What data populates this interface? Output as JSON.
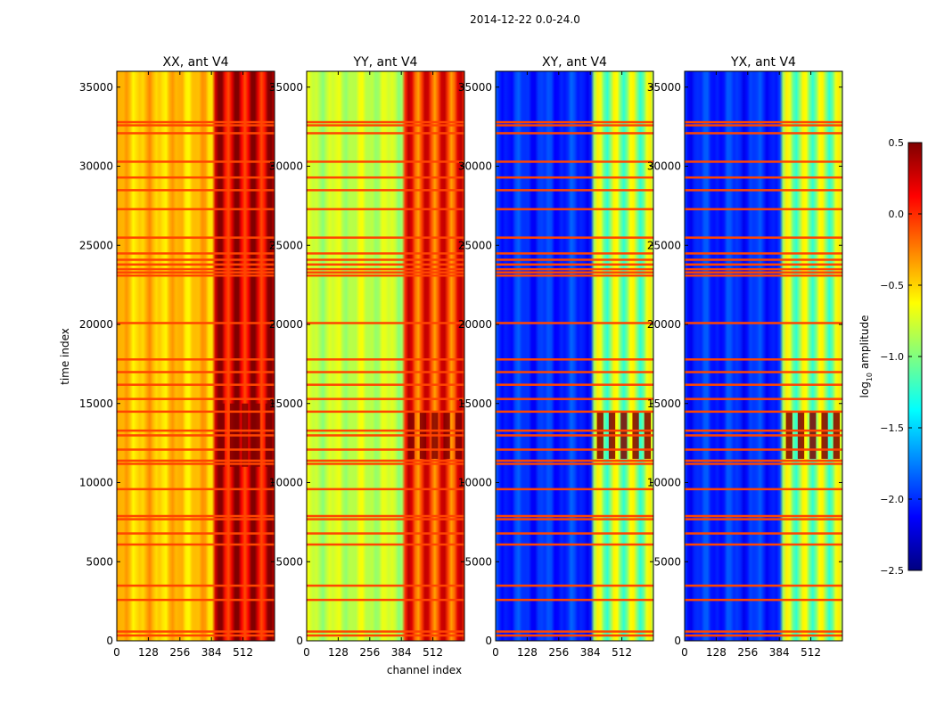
{
  "figure": {
    "suptitle": "2014-12-22 0.0-24.0",
    "xlabel": "channel index",
    "ylabel": "time index"
  },
  "colors": {
    "jet": [
      "#000080",
      "#0000ff",
      "#0080ff",
      "#00ffff",
      "#80ff80",
      "#ffff00",
      "#ff8000",
      "#ff0000",
      "#800000"
    ]
  },
  "chart_data": [
    {
      "type": "heatmap",
      "title": "XX, ant V4",
      "polarization": "XX",
      "xlim": [
        0,
        640
      ],
      "ylim": [
        0,
        36000
      ],
      "xticks": [
        0,
        128,
        256,
        384,
        512
      ],
      "xtick_labels": [
        "0",
        "128",
        "256",
        "384",
        "512"
      ],
      "yticks": [
        0,
        5000,
        10000,
        15000,
        20000,
        25000,
        30000,
        35000
      ],
      "ytick_labels": [
        "0",
        "5000",
        "10000",
        "15000",
        "20000",
        "25000",
        "30000",
        "35000"
      ],
      "base_level": -0.45,
      "bright_region_start": 400,
      "bright_level": 0.25,
      "peak_level": 0.5,
      "peak_time_range": [
        11000,
        15000
      ]
    },
    {
      "type": "heatmap",
      "title": "YY, ant V4",
      "polarization": "YY",
      "xlim": [
        0,
        640
      ],
      "ylim": [
        0,
        36000
      ],
      "xticks": [
        0,
        128,
        256,
        384,
        512
      ],
      "xtick_labels": [
        "0",
        "128",
        "256",
        "384",
        "512"
      ],
      "yticks": [
        0,
        5000,
        10000,
        15000,
        20000,
        25000,
        30000,
        35000
      ],
      "ytick_labels": [
        "0",
        "5000",
        "10000",
        "15000",
        "20000",
        "25000",
        "30000",
        "35000"
      ],
      "base_level": -0.8,
      "bright_region_start": 400,
      "bright_level": 0.0,
      "peak_level": 0.5,
      "peak_time_range": [
        11500,
        14500
      ]
    },
    {
      "type": "heatmap",
      "title": "XY, ant V4",
      "polarization": "XY",
      "xlim": [
        0,
        640
      ],
      "ylim": [
        0,
        36000
      ],
      "xticks": [
        0,
        128,
        256,
        384,
        512
      ],
      "xtick_labels": [
        "0",
        "128",
        "256",
        "384",
        "512"
      ],
      "yticks": [
        0,
        5000,
        10000,
        15000,
        20000,
        25000,
        30000,
        35000
      ],
      "ytick_labels": [
        "0",
        "5000",
        "10000",
        "15000",
        "20000",
        "25000",
        "30000",
        "35000"
      ],
      "base_level": -2.0,
      "bright_region_start": 400,
      "bright_level": -0.9,
      "peak_level": 0.5,
      "peak_time_range": [
        11500,
        14500
      ]
    },
    {
      "type": "heatmap",
      "title": "YX, ant V4",
      "polarization": "YX",
      "xlim": [
        0,
        640
      ],
      "ylim": [
        0,
        36000
      ],
      "xticks": [
        0,
        128,
        256,
        384,
        512
      ],
      "xtick_labels": [
        "0",
        "128",
        "256",
        "384",
        "512"
      ],
      "yticks": [
        0,
        5000,
        10000,
        15000,
        20000,
        25000,
        30000,
        35000
      ],
      "ytick_labels": [
        "0",
        "5000",
        "10000",
        "15000",
        "20000",
        "25000",
        "30000",
        "35000"
      ],
      "base_level": -2.0,
      "bright_region_start": 400,
      "bright_level": -0.9,
      "peak_level": 0.5,
      "peak_time_range": [
        11500,
        14500
      ]
    }
  ],
  "colorbar": {
    "label": "log10 amplitude",
    "label_base": "log",
    "label_sub": "10",
    "label_rest": " amplitude",
    "vmin": -2.5,
    "vmax": 0.5,
    "ticks": [
      -2.5,
      -2.0,
      -1.5,
      -1.0,
      -0.5,
      0.0,
      0.5
    ],
    "tick_labels": [
      "−2.5",
      "−2.0",
      "−1.5",
      "−1.0",
      "−0.5",
      "0.0",
      "0.5"
    ]
  },
  "flag_rows": [
    350,
    600,
    2600,
    3500,
    6100,
    6800,
    7700,
    7900,
    9600,
    11200,
    11400,
    12100,
    13000,
    13300,
    14500,
    15300,
    16200,
    17000,
    17800,
    20100,
    23100,
    23300,
    23500,
    23800,
    24100,
    24500,
    25500,
    27300,
    28500,
    29300,
    30300,
    32100,
    32600,
    32800
  ]
}
